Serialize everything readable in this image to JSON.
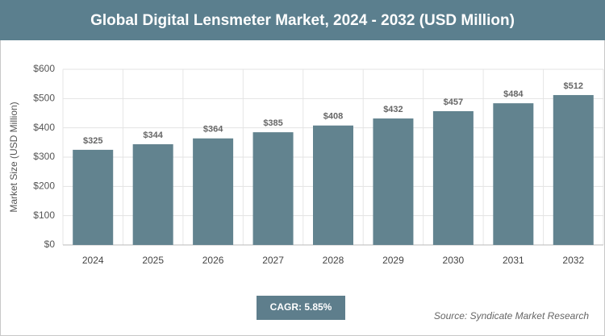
{
  "chart_data": {
    "type": "bar",
    "title": "Global Digital Lensmeter Market, 2024 - 2032 (USD Million)",
    "y_label": "Market Size (USD Million)",
    "categories": [
      "2024",
      "2025",
      "2026",
      "2027",
      "2028",
      "2029",
      "2030",
      "2031",
      "2032"
    ],
    "values": [
      325,
      344,
      364,
      385,
      408,
      432,
      457,
      484,
      512
    ],
    "value_labels": [
      "$325",
      "$344",
      "$364",
      "$385",
      "$408",
      "$432",
      "$457",
      "$484",
      "$512"
    ],
    "color": "#62838f",
    "ylim": [
      0,
      600
    ],
    "yticks": [
      {
        "value": 0,
        "label": "$0"
      },
      {
        "value": 100,
        "label": "$100"
      },
      {
        "value": 200,
        "label": "$200"
      },
      {
        "value": 300,
        "label": "$300"
      },
      {
        "value": 400,
        "label": "$400"
      },
      {
        "value": 500,
        "label": "$500"
      },
      {
        "value": 600,
        "label": "$600"
      }
    ],
    "grid": true,
    "annotations": {
      "cagr": "CAGR: 5.85%",
      "source": "Source: Syndicate Market Research"
    }
  }
}
